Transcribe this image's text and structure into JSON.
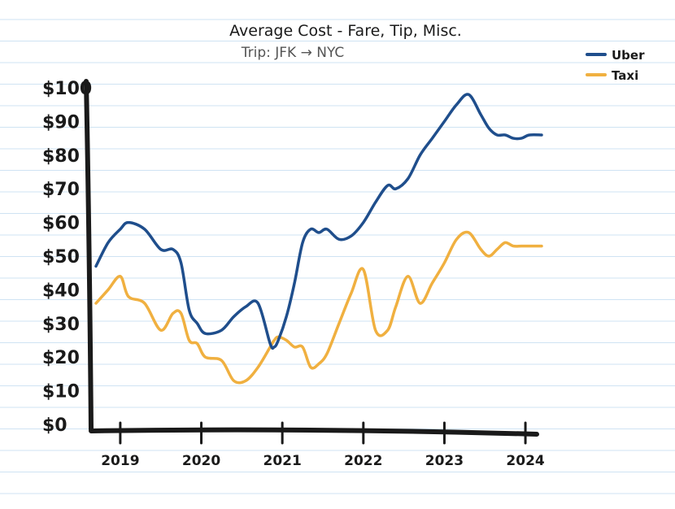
{
  "chart_data": {
    "type": "line",
    "title": "Average Cost - Fare, Tip, Misc.",
    "subtitle": "Trip: JFK → NYC",
    "xlabel": "",
    "ylabel": "",
    "x_ticks": [
      "2019",
      "2020",
      "2021",
      "2022",
      "2023",
      "2024"
    ],
    "y_ticks": [
      "$0",
      "$10",
      "$20",
      "$30",
      "$40",
      "$50",
      "$60",
      "$70",
      "$80",
      "$90",
      "$100"
    ],
    "ylim": [
      0,
      100
    ],
    "grid": "horizontal ruled lines",
    "legend_position": "top-right",
    "x": [
      2018.7,
      2018.85,
      2019.0,
      2019.1,
      2019.3,
      2019.5,
      2019.65,
      2019.75,
      2019.85,
      2019.95,
      2020.05,
      2020.25,
      2020.4,
      2020.55,
      2020.7,
      2020.85,
      2020.9,
      2020.95,
      2021.05,
      2021.15,
      2021.25,
      2021.35,
      2021.45,
      2021.55,
      2021.7,
      2021.85,
      2022.0,
      2022.15,
      2022.3,
      2022.4,
      2022.55,
      2022.7,
      2022.85,
      2023.0,
      2023.15,
      2023.3,
      2023.45,
      2023.55,
      2023.65,
      2023.75,
      2023.85,
      2023.95,
      2024.05,
      2024.2
    ],
    "series": [
      {
        "name": "Uber",
        "color": "#1f4e8c",
        "values": [
          47,
          54,
          58,
          60,
          58,
          52,
          52,
          48,
          34,
          30,
          27,
          28,
          32,
          35,
          36,
          24,
          23,
          25,
          32,
          42,
          54,
          58,
          57,
          58,
          55,
          56,
          60,
          66,
          71,
          70,
          73,
          80,
          85,
          90,
          95,
          98,
          92,
          88,
          86,
          86,
          85,
          85,
          86,
          86
        ]
      },
      {
        "name": "Taxi",
        "color": "#f0b040",
        "values": [
          36,
          40,
          44,
          38,
          36,
          28,
          33,
          33,
          25,
          24,
          20,
          19,
          13,
          13,
          17,
          23,
          25,
          26,
          25,
          23,
          23,
          17,
          18,
          21,
          30,
          39,
          46,
          28,
          28,
          35,
          44,
          36,
          42,
          48,
          55,
          57,
          52,
          50,
          52,
          54,
          53,
          53,
          53,
          53
        ]
      }
    ]
  }
}
